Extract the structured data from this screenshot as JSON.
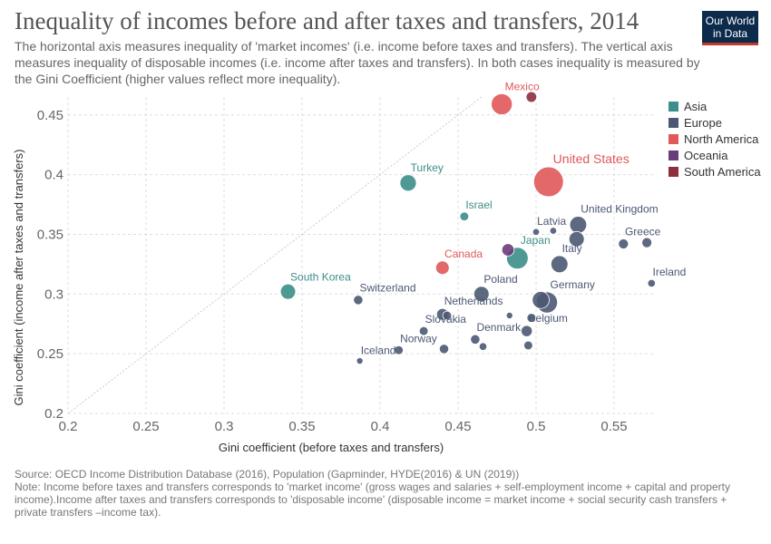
{
  "header": {
    "title": "Inequality of incomes before and after taxes and transfers, 2014",
    "subtitle": "The horizontal axis measures inequality of 'market incomes' (i.e. income before taxes and transfers). The vertical axis measures inequality of disposable incomes (i.e. income after taxes and transfers). In both cases inequality is measured by the Gini Coefficient (higher values reflect more inequality).",
    "logo_line1": "Our World",
    "logo_line2": "in Data"
  },
  "legend": {
    "items": [
      {
        "label": "Asia",
        "color": "#3c8e8a"
      },
      {
        "label": "Europe",
        "color": "#4b5873"
      },
      {
        "label": "North America",
        "color": "#e0585a"
      },
      {
        "label": "Oceania",
        "color": "#6b3c7a"
      },
      {
        "label": "South America",
        "color": "#8c2f3e"
      }
    ]
  },
  "footer": {
    "source": "Source: OECD Income Distribution Database (2016), Population (Gapminder, HYDE(2016) & UN (2019))",
    "note": "Note: Income before taxes and transfers corresponds to 'market income' (gross wages and salaries + self-employment income + capital and property income).Income after taxes and transfers corresponds to 'disposable income' (disposable income = market income + social security cash transfers + private transfers –income tax)."
  },
  "chart_data": {
    "type": "scatter",
    "title": "Inequality of incomes before and after taxes and transfers, 2014",
    "xlabel": "Gini coefficient (before taxes and transfers)",
    "ylabel": "Gini coefficient (income after taxes and transfers)",
    "xlim": [
      0.2,
      0.575
    ],
    "ylim": [
      0.2,
      0.465
    ],
    "xticks": [
      0.2,
      0.25,
      0.3,
      0.35,
      0.4,
      0.45,
      0.5,
      0.55
    ],
    "xtick_labels": [
      "0.2",
      "0.25",
      "0.3",
      "0.35",
      "0.4",
      "0.45",
      "0.5",
      "0.55"
    ],
    "yticks": [
      0.2,
      0.25,
      0.3,
      0.35,
      0.4,
      0.45
    ],
    "ytick_labels": [
      "0.2",
      "0.25",
      "0.3",
      "0.35",
      "0.4",
      "0.45"
    ],
    "grid": true,
    "diagonal_line": true,
    "size_encodes": "population",
    "points": [
      {
        "label": "Mexico",
        "region": "North America",
        "x": 0.478,
        "y": 0.459,
        "size": 3
      },
      {
        "label": "",
        "region": "South America",
        "x": 0.497,
        "y": 0.465,
        "size": 1.2
      },
      {
        "label": "United States",
        "region": "North America",
        "x": 0.508,
        "y": 0.394,
        "size": 4.5
      },
      {
        "label": "Turkey",
        "region": "Asia",
        "x": 0.418,
        "y": 0.393,
        "size": 2.2
      },
      {
        "label": "Israel",
        "region": "Asia",
        "x": 0.454,
        "y": 0.365,
        "size": 0.9
      },
      {
        "label": "Latvia",
        "region": "Europe",
        "x": 0.5,
        "y": 0.352,
        "size": 0.55
      },
      {
        "label": "",
        "region": "Europe",
        "x": 0.511,
        "y": 0.353,
        "size": 0.55
      },
      {
        "label": "United Kingdom",
        "region": "Europe",
        "x": 0.527,
        "y": 0.358,
        "size": 2.3
      },
      {
        "label": "",
        "region": "Europe",
        "x": 0.526,
        "y": 0.346,
        "size": 2
      },
      {
        "label": "Greece",
        "region": "Europe",
        "x": 0.556,
        "y": 0.342,
        "size": 1.1
      },
      {
        "label": "",
        "region": "Europe",
        "x": 0.571,
        "y": 0.343,
        "size": 1.1
      },
      {
        "label": "Japan",
        "region": "Asia",
        "x": 0.488,
        "y": 0.33,
        "size": 3.1
      },
      {
        "label": "",
        "region": "Oceania",
        "x": 0.482,
        "y": 0.337,
        "size": 1.5
      },
      {
        "label": "Italy",
        "region": "Europe",
        "x": 0.515,
        "y": 0.325,
        "size": 2.3
      },
      {
        "label": "Canada",
        "region": "North America",
        "x": 0.44,
        "y": 0.322,
        "size": 1.7
      },
      {
        "label": "Ireland",
        "region": "Europe",
        "x": 0.574,
        "y": 0.309,
        "size": 0.7
      },
      {
        "label": "South Korea",
        "region": "Asia",
        "x": 0.341,
        "y": 0.302,
        "size": 2
      },
      {
        "label": "Poland",
        "region": "Europe",
        "x": 0.465,
        "y": 0.3,
        "size": 2
      },
      {
        "label": "Switzerland",
        "region": "Europe",
        "x": 0.386,
        "y": 0.295,
        "size": 1
      },
      {
        "label": "Germany",
        "region": "Europe",
        "x": 0.507,
        "y": 0.293,
        "size": 3
      },
      {
        "label": "",
        "region": "Europe",
        "x": 0.503,
        "y": 0.295,
        "size": 2.3
      },
      {
        "label": "Netherlands",
        "region": "Europe",
        "x": 0.44,
        "y": 0.283,
        "size": 1.4
      },
      {
        "label": "",
        "region": "Europe",
        "x": 0.443,
        "y": 0.282,
        "size": 0.9
      },
      {
        "label": "",
        "region": "Europe",
        "x": 0.483,
        "y": 0.282,
        "size": 0.5
      },
      {
        "label": "",
        "region": "Europe",
        "x": 0.497,
        "y": 0.28,
        "size": 0.9
      },
      {
        "label": "Belgium",
        "region": "Europe",
        "x": 0.494,
        "y": 0.269,
        "size": 1.3
      },
      {
        "label": "Slovakia",
        "region": "Europe",
        "x": 0.428,
        "y": 0.269,
        "size": 0.9
      },
      {
        "label": "Denmark",
        "region": "Europe",
        "x": 0.461,
        "y": 0.262,
        "size": 1
      },
      {
        "label": "",
        "region": "Europe",
        "x": 0.466,
        "y": 0.256,
        "size": 0.7
      },
      {
        "label": "",
        "region": "Europe",
        "x": 0.495,
        "y": 0.257,
        "size": 0.9
      },
      {
        "label": "Norway",
        "region": "Europe",
        "x": 0.412,
        "y": 0.253,
        "size": 0.9
      },
      {
        "label": "",
        "region": "Europe",
        "x": 0.441,
        "y": 0.254,
        "size": 1
      },
      {
        "label": "Iceland",
        "region": "Europe",
        "x": 0.387,
        "y": 0.244,
        "size": 0.5
      }
    ]
  }
}
